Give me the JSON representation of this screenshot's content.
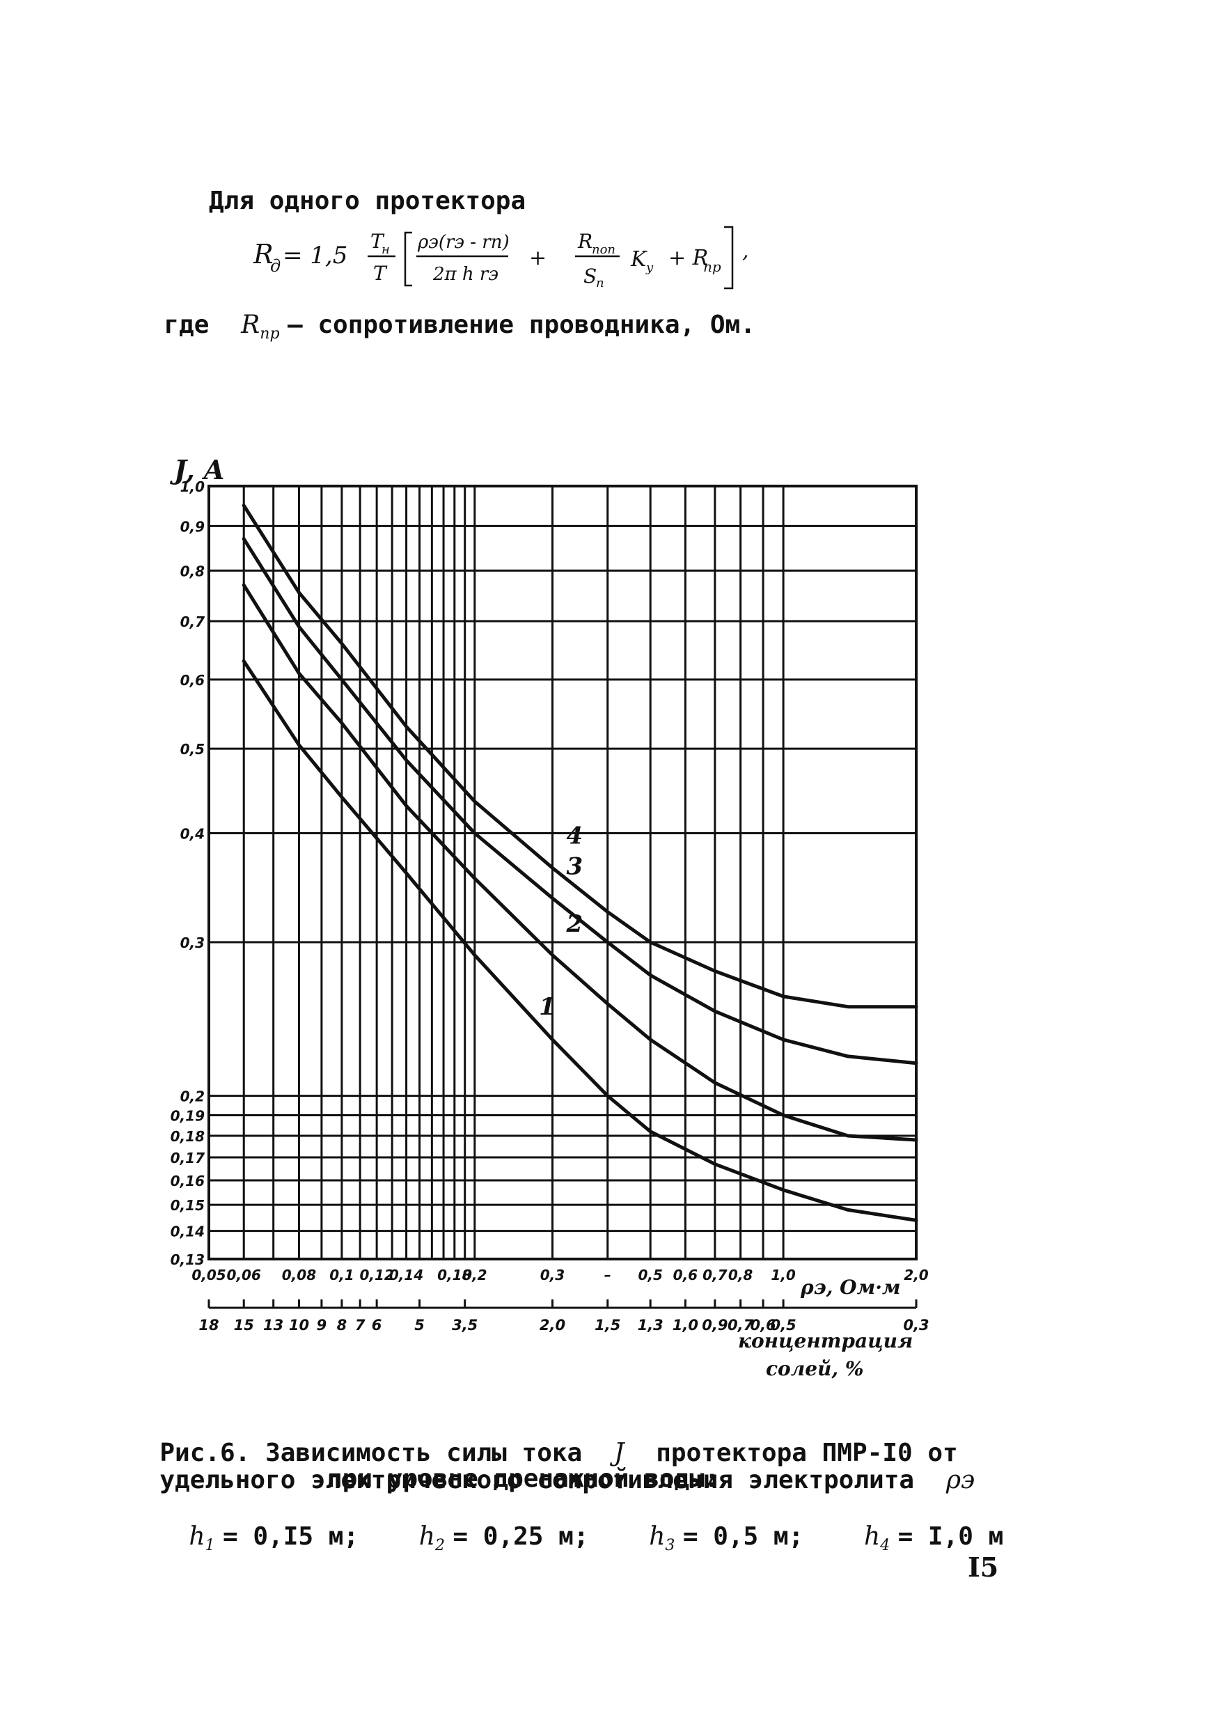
{
  "text": {
    "intro": "Для одного протектора",
    "gde": "где",
    "r_pr_desc": "– сопротивление проводника, Ом.",
    "caption_l1": "Рис.6. Зависимость силы тока",
    "caption_l1b": "протектора ПМР-I0 от",
    "caption_l2": "удельного электрического сопротивления электролита",
    "caption_l3": "при уровне дренажной воды:",
    "h1": "= 0,I5 м;",
    "h2": "= 0,25 м;",
    "h3": "= 0,5 м;",
    "h4": "= I,0 м",
    "page_number": "I5"
  },
  "chart_data": {
    "type": "line",
    "y_scale": "log",
    "x_scale": "log",
    "ylabel": "J, A",
    "xlabel": "ρэ, Ом·м",
    "xlabel2": "концентрация солей, %",
    "xlim": [
      0.05,
      2.0
    ],
    "ylim": [
      0.13,
      1.0
    ],
    "y_ticks": [
      1.0,
      0.9,
      0.8,
      0.7,
      0.6,
      0.5,
      0.4,
      0.3,
      0.2,
      0.19,
      0.18,
      0.17,
      0.16,
      0.15,
      0.14,
      0.13
    ],
    "y_tick_labels": [
      "1,0",
      "0,9",
      "0,8",
      "0,7",
      "0,6",
      "0,5",
      "0,4",
      "0,3",
      "0,2",
      "0,19",
      "0,18",
      "0,17",
      "0,16",
      "0,15",
      "0,14",
      "0,13"
    ],
    "x_ticks": [
      0.05,
      0.06,
      0.07,
      0.08,
      0.09,
      0.1,
      0.11,
      0.12,
      0.13,
      0.14,
      0.15,
      0.16,
      0.17,
      0.18,
      0.19,
      0.2,
      0.3,
      0.4,
      0.5,
      0.6,
      0.7,
      0.8,
      0.9,
      1.0,
      2.0
    ],
    "x_tick_labels": [
      {
        "x": 0.05,
        "label": "0,05"
      },
      {
        "x": 0.06,
        "label": "0,06"
      },
      {
        "x": 0.08,
        "label": "0,08"
      },
      {
        "x": 0.1,
        "label": "0,1"
      },
      {
        "x": 0.12,
        "label": "0,12"
      },
      {
        "x": 0.14,
        "label": "0,14"
      },
      {
        "x": 0.18,
        "label": "0,18"
      },
      {
        "x": 0.2,
        "label": "0,2"
      },
      {
        "x": 0.3,
        "label": "0,3"
      },
      {
        "x": 0.4,
        "label": "–"
      },
      {
        "x": 0.5,
        "label": "0,5"
      },
      {
        "x": 0.6,
        "label": "0,6"
      },
      {
        "x": 0.7,
        "label": "0,7"
      },
      {
        "x": 0.8,
        "label": "0,8"
      },
      {
        "x": 1.0,
        "label": "1,0"
      },
      {
        "x": 2.0,
        "label": "2,0"
      }
    ],
    "conc_ticks": [
      {
        "x": 0.05,
        "label": "18"
      },
      {
        "x": 0.06,
        "label": "15"
      },
      {
        "x": 0.07,
        "label": "13"
      },
      {
        "x": 0.08,
        "label": "10"
      },
      {
        "x": 0.09,
        "label": "9"
      },
      {
        "x": 0.1,
        "label": "8"
      },
      {
        "x": 0.11,
        "label": "7"
      },
      {
        "x": 0.12,
        "label": "6"
      },
      {
        "x": 0.15,
        "label": "5"
      },
      {
        "x": 0.19,
        "label": "3,5"
      },
      {
        "x": 0.3,
        "label": "2,0"
      },
      {
        "x": 0.4,
        "label": "1,5"
      },
      {
        "x": 0.5,
        "label": "1,3"
      },
      {
        "x": 0.6,
        "label": "1,0"
      },
      {
        "x": 0.7,
        "label": "0,9"
      },
      {
        "x": 0.8,
        "label": "0,7"
      },
      {
        "x": 0.9,
        "label": "0,6"
      },
      {
        "x": 1.0,
        "label": "0,5"
      },
      {
        "x": 2.0,
        "label": "0,3"
      }
    ],
    "series": [
      {
        "name": "1",
        "x": [
          0.06,
          0.08,
          0.1,
          0.14,
          0.2,
          0.3,
          0.4,
          0.5,
          0.7,
          1.0,
          1.4,
          2.0
        ],
        "y": [
          0.63,
          0.505,
          0.44,
          0.36,
          0.29,
          0.232,
          0.2,
          0.182,
          0.167,
          0.156,
          0.148,
          0.144
        ]
      },
      {
        "name": "2",
        "x": [
          0.06,
          0.08,
          0.1,
          0.14,
          0.2,
          0.3,
          0.4,
          0.5,
          0.7,
          1.0,
          1.4,
          2.0
        ],
        "y": [
          0.77,
          0.61,
          0.535,
          0.43,
          0.355,
          0.29,
          0.255,
          0.232,
          0.207,
          0.19,
          0.18,
          0.178
        ]
      },
      {
        "name": "3",
        "x": [
          0.06,
          0.08,
          0.1,
          0.14,
          0.2,
          0.3,
          0.4,
          0.5,
          0.7,
          1.0,
          1.4,
          2.0
        ],
        "y": [
          0.87,
          0.69,
          0.6,
          0.485,
          0.4,
          0.337,
          0.3,
          0.275,
          0.25,
          0.232,
          0.222,
          0.218
        ]
      },
      {
        "name": "4",
        "x": [
          0.06,
          0.08,
          0.1,
          0.14,
          0.2,
          0.3,
          0.4,
          0.5,
          0.7,
          1.0,
          1.4,
          2.0
        ],
        "y": [
          0.95,
          0.755,
          0.66,
          0.53,
          0.435,
          0.365,
          0.325,
          0.3,
          0.278,
          0.26,
          0.253,
          0.253
        ]
      }
    ]
  }
}
